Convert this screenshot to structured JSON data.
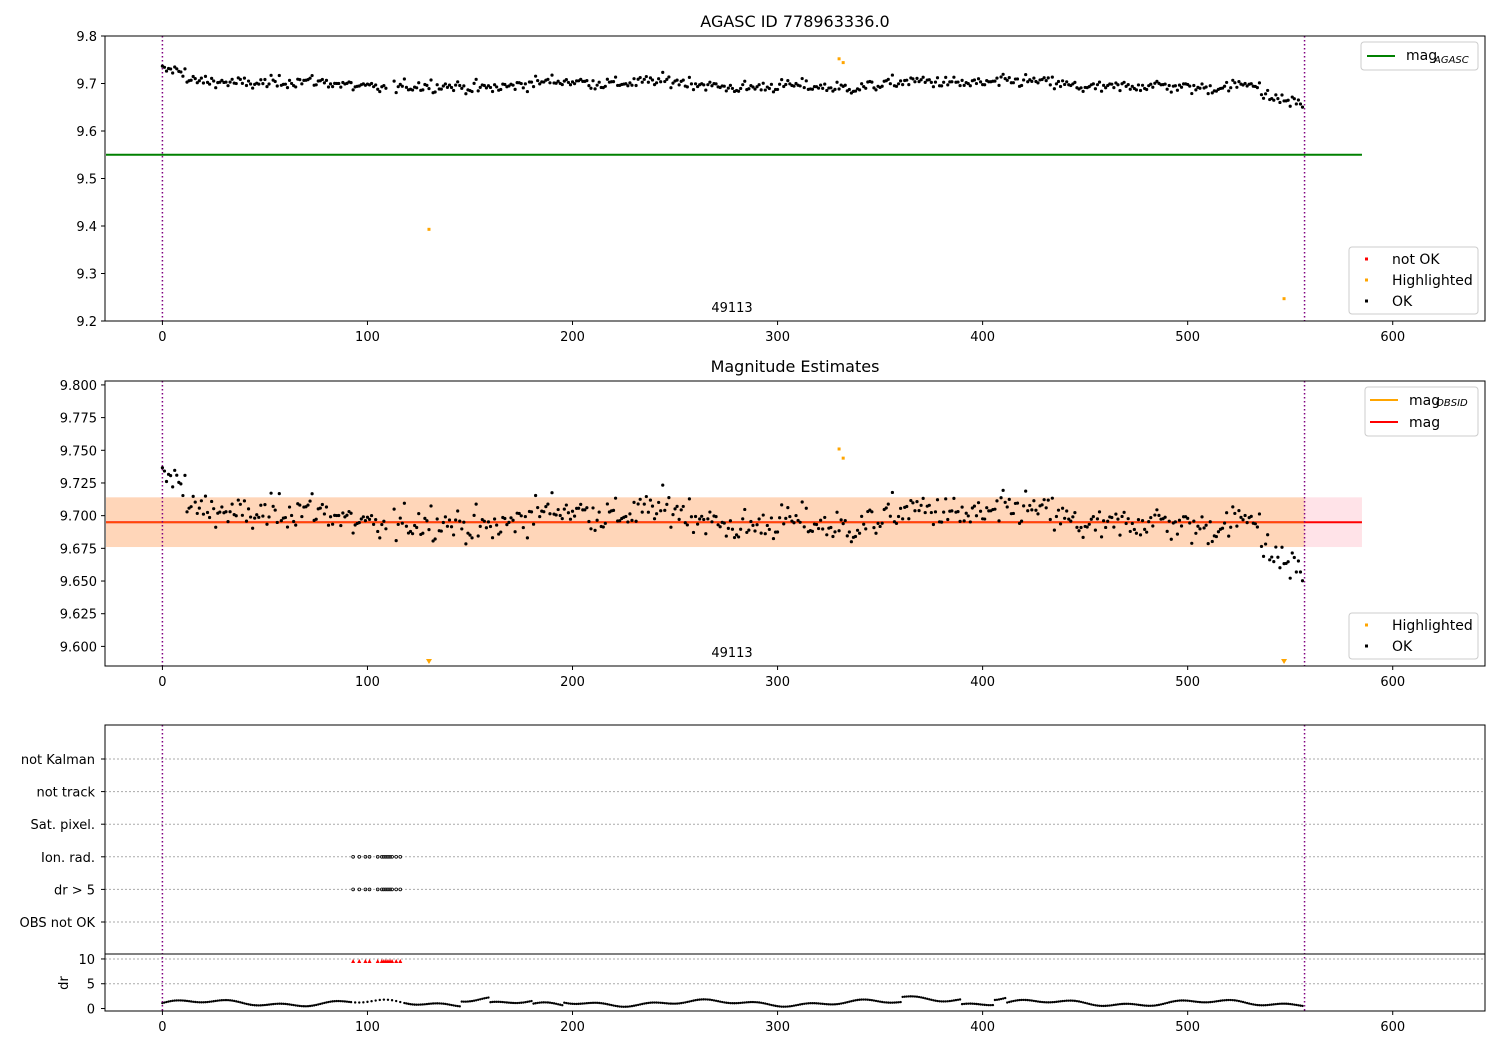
{
  "chart_data": [
    {
      "type": "scatter",
      "title": "AGASC ID 778963336.0",
      "xlim": [
        -28,
        645
      ],
      "ylim": [
        9.2,
        9.8
      ],
      "x_ticks": [
        0,
        100,
        200,
        300,
        400,
        500,
        600
      ],
      "y_ticks": [
        9.2,
        9.3,
        9.4,
        9.5,
        9.6,
        9.7,
        9.8
      ],
      "y_tick_labels": [
        "9.2",
        "9.3",
        "9.4",
        "9.5",
        "9.6",
        "9.7",
        "9.8"
      ],
      "vlines": [
        0,
        557
      ],
      "obsid_label": "49113",
      "obsid_label_x": 278,
      "agasc_line": {
        "value": 9.55,
        "x_range": [
          -28,
          585
        ]
      },
      "series_ok_count": 557,
      "highlighted_points": [
        [
          130,
          9.393
        ],
        [
          330,
          9.752
        ],
        [
          332,
          9.744
        ],
        [
          547,
          9.247
        ]
      ],
      "legend_top": [
        {
          "label": "mag",
          "sub": "AGASC",
          "color": "#008000"
        }
      ],
      "legend_bottom": [
        {
          "label": "not OK",
          "color": "#ff0000"
        },
        {
          "label": "Highlighted",
          "color": "#ffa500"
        },
        {
          "label": "OK",
          "color": "#000000"
        }
      ]
    },
    {
      "type": "scatter",
      "title": "Magnitude Estimates",
      "xlim": [
        -28,
        645
      ],
      "ylim": [
        9.585,
        9.803
      ],
      "x_ticks": [
        0,
        100,
        200,
        300,
        400,
        500,
        600
      ],
      "y_ticks": [
        9.6,
        9.625,
        9.65,
        9.675,
        9.7,
        9.725,
        9.75,
        9.775,
        9.8
      ],
      "y_tick_labels": [
        "9.600",
        "9.625",
        "9.650",
        "9.675",
        "9.700",
        "9.725",
        "9.750",
        "9.775",
        "9.800"
      ],
      "vlines": [
        0,
        557
      ],
      "obsid_label": "49113",
      "obsid_label_x": 278,
      "mag_line": {
        "value": 9.695,
        "x_range": [
          -28,
          585
        ],
        "color": "#ff0000"
      },
      "band_outer": {
        "low": 9.676,
        "high": 9.714,
        "color": "#ffc0cb"
      },
      "band_inner": {
        "low": 9.676,
        "high": 9.714,
        "color": "#ffa500"
      },
      "highlighted_points": [
        [
          330,
          9.751
        ],
        [
          332,
          9.744
        ]
      ],
      "highlighted_markers": [
        130,
        547
      ],
      "legend_top": [
        {
          "label": "mag",
          "sub": "OBSID",
          "color": "#ffa500"
        },
        {
          "label": "mag",
          "sub": "",
          "color": "#ff0000"
        }
      ],
      "legend_bottom": [
        {
          "label": "Highlighted",
          "color": "#ffa500"
        },
        {
          "label": "OK",
          "color": "#000000"
        }
      ]
    },
    {
      "type": "scatter",
      "title": "",
      "xlim": [
        -28,
        645
      ],
      "x_ticks": [
        0,
        100,
        200,
        300,
        400,
        500,
        600
      ],
      "flag_labels": [
        "not Kalman",
        "not track",
        "Sat. pixel.",
        "Ion. rad.",
        "dr > 5",
        "OBS not OK"
      ],
      "flag_points": [
        {
          "flag": "Ion. rad.",
          "x": [
            93,
            96,
            99,
            101,
            105,
            107,
            108,
            109,
            110,
            111,
            112,
            114,
            116
          ]
        },
        {
          "flag": "dr > 5",
          "x": [
            93,
            96,
            99,
            101,
            105,
            107,
            108,
            109,
            110,
            111,
            112,
            114,
            116
          ]
        }
      ],
      "dr_ylabel": "dr",
      "dr_ticks": [
        0,
        5,
        10
      ],
      "dr_ylim": [
        -0.5,
        11
      ],
      "dr_clipped_x": [
        93,
        96,
        99,
        101,
        105,
        107,
        108,
        109,
        110,
        111,
        112,
        114,
        116
      ],
      "vlines": [
        0,
        557
      ]
    }
  ],
  "colors": {
    "ok": "#000000",
    "highlighted": "#ffa500",
    "not_ok": "#ff0000",
    "vline": "#800080",
    "agasc": "#008000"
  }
}
